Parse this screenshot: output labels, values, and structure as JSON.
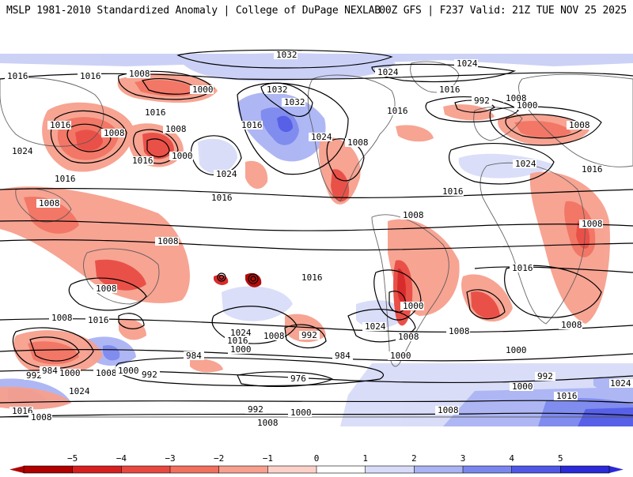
{
  "header": {
    "title_left": "MSLP 1981-2010 Standardized Anomaly | College of DuPage NEXLAB",
    "title_right": "00Z GFS | F237 Valid: 21Z TUE NOV 25 2025"
  },
  "colorbar": {
    "ticks": [
      "−5",
      "−4",
      "−3",
      "−2",
      "−1",
      "0",
      "1",
      "2",
      "3",
      "4",
      "5"
    ],
    "colors": [
      "#b00000",
      "#d62020",
      "#e8483f",
      "#f2705e",
      "#f7a08e",
      "#fcd2c8",
      "#ffffff",
      "#d8dcf8",
      "#aab4f4",
      "#7a86ee",
      "#4f58e6",
      "#2a2ad8"
    ]
  },
  "isobar_labels": [
    "1032",
    "1024",
    "1016",
    "1008",
    "1000",
    "992",
    "984",
    "976"
  ],
  "contour_labels_shown": [
    "1032",
    "1032",
    "1032",
    "1024",
    "1016",
    "1008",
    "1000",
    "1016",
    "1016",
    "1008",
    "1016",
    "1024",
    "1016",
    "1008",
    "1000",
    "1016",
    "1024",
    "1016",
    "1024",
    "1016",
    "1008",
    "1016",
    "1008",
    "1016",
    "1016",
    "992",
    "1008",
    "1000",
    "1008",
    "1016",
    "1024",
    "1016",
    "1016",
    "1008",
    "1008",
    "1016",
    "1008",
    "1016",
    "1008",
    "1016",
    "1000",
    "1008",
    "1008",
    "1000",
    "1024",
    "1016",
    "1008",
    "992",
    "1024",
    "984",
    "1000",
    "1008",
    "992",
    "984",
    "976",
    "1000",
    "992",
    "1000",
    "1008",
    "1016",
    "1024",
    "1016",
    "1008",
    "992",
    "1000",
    "1008",
    "1000",
    "1016",
    "1024",
    "1008",
    "1008",
    "1000",
    "992",
    "1000",
    "1016",
    "1008"
  ]
}
